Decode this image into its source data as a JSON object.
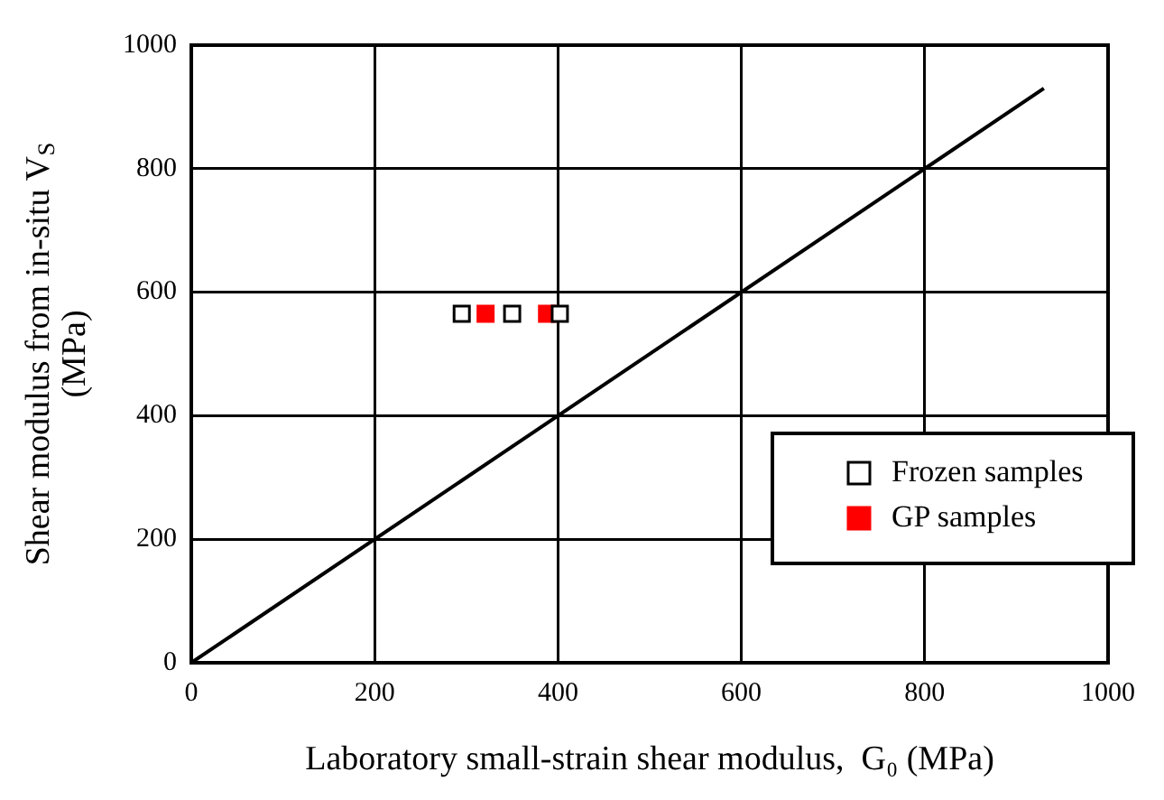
{
  "chart_data": {
    "type": "scatter",
    "xlabel": "Laboratory small-strain shear modulus,  G₀ (MPa)",
    "ylabel": "Shear modulus from in-situ V$_{S}$\n(MPa)",
    "xlim": [
      0,
      1000
    ],
    "xticks": [
      0,
      200,
      400,
      600,
      800,
      1000
    ],
    "ylim": [
      0,
      1000
    ],
    "yticks": [
      0,
      200,
      400,
      600,
      800,
      1000
    ],
    "grid": true,
    "legend": "bottom right",
    "marker": "square",
    "series": [
      {
        "name": "Frozen samples",
        "color": "#000000",
        "x": [
          295,
          350,
          402
        ],
        "values": [
          565,
          565,
          565
        ]
      },
      {
        "name": "GP samples",
        "color": "#ff0000",
        "x": [
          321,
          388
        ],
        "values": [
          565,
          565
        ]
      },
      {
        "type": "line",
        "color": "#000000",
        "marker": "none",
        "x": [
          0,
          930
        ],
        "values": [
          0,
          930
        ]
      }
    ]
  }
}
